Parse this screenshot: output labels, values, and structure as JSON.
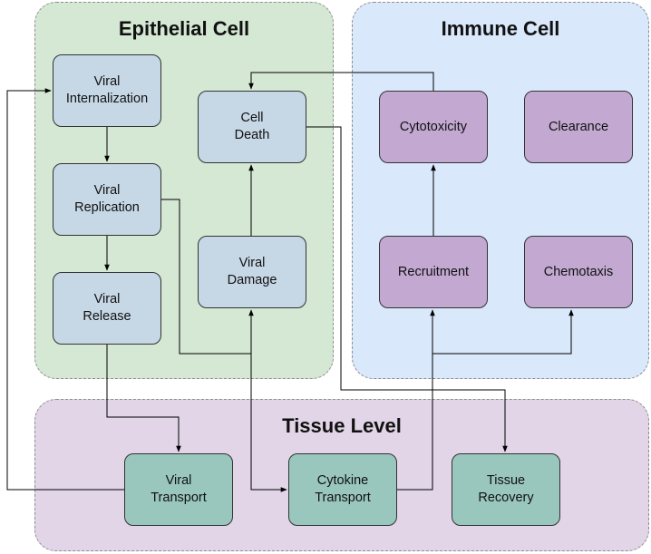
{
  "regions": {
    "epithelial": {
      "title": "Epithelial Cell",
      "fill": "#d5e8d4"
    },
    "immune": {
      "title": "Immune Cell",
      "fill": "#dae8fc"
    },
    "tissue": {
      "title": "Tissue Level",
      "fill": "#e1d5e7"
    }
  },
  "nodes": {
    "viral_internalization": "Viral\nInternalization",
    "viral_replication": "Viral\nReplication",
    "viral_release": "Viral\nRelease",
    "cell_death": "Cell\nDeath",
    "viral_damage": "Viral\nDamage",
    "cytotoxicity": "Cytotoxicity",
    "clearance": "Clearance",
    "recruitment": "Recruitment",
    "chemotaxis": "Chemotaxis",
    "viral_transport": "Viral\nTransport",
    "cytokine_transport": "Cytokine\nTransport",
    "tissue_recovery": "Tissue\nRecovery"
  },
  "colors": {
    "epithelial_node": "#c6d7e6",
    "immune_node": "#c3a9d1",
    "tissue_node": "#99c6bd",
    "edge": "#000000"
  },
  "edges": [
    {
      "from": "viral_internalization",
      "to": "viral_replication"
    },
    {
      "from": "viral_replication",
      "to": "viral_release"
    },
    {
      "from": "viral_replication",
      "to": "viral_damage"
    },
    {
      "from": "viral_release",
      "to": "viral_transport"
    },
    {
      "from": "viral_transport",
      "to": "viral_internalization"
    },
    {
      "from": "viral_damage",
      "to": "cell_death"
    },
    {
      "from": "viral_damage",
      "to": "cytokine_transport"
    },
    {
      "from": "cell_death",
      "to": "tissue_recovery"
    },
    {
      "from": "cytotoxicity",
      "to": "cell_death"
    },
    {
      "from": "recruitment",
      "to": "cytotoxicity"
    },
    {
      "from": "cytokine_transport",
      "to": "recruitment"
    },
    {
      "from": "cytokine_transport",
      "to": "chemotaxis"
    }
  ]
}
